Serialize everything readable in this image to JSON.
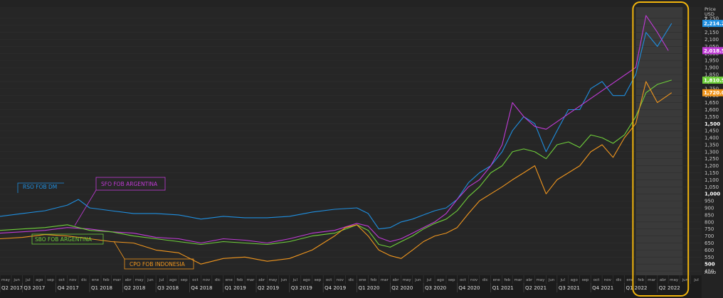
{
  "chart_data": {
    "type": "line",
    "unit_label": [
      "Price",
      "USD",
      "T"
    ],
    "yticks": [
      450,
      500,
      550,
      600,
      650,
      700,
      750,
      800,
      850,
      900,
      950,
      1000,
      1050,
      1100,
      1150,
      1200,
      1250,
      1300,
      1350,
      1400,
      1450,
      1500,
      1550,
      1600,
      1650,
      1700,
      1750,
      1800,
      1850,
      1900,
      1950,
      2000,
      2050,
      2100,
      2150,
      2200,
      2250
    ],
    "ytick_labels": [
      "450",
      "500",
      "550",
      "600",
      "650",
      "700",
      "750",
      "800",
      "850",
      "900",
      "950",
      "1,000",
      "1,050",
      "1,100",
      "1,150",
      "1,200",
      "1,250",
      "1,300",
      "1,350",
      "1,400",
      "1,450",
      "1,500",
      "1,550",
      "1,600",
      "1,650",
      "1,700",
      "1,750",
      "1,800",
      "1,850",
      "1,900",
      "1,950",
      "2,000",
      "2,050",
      "2,100",
      "2,150",
      "2,200",
      "2,250"
    ],
    "ytick_bold": [
      "500",
      "1,000",
      "1,500"
    ],
    "ylim": [
      420,
      2320
    ],
    "ybottom_label": "Auto",
    "xlim": [
      "2017-05-01",
      "2022-07-31"
    ],
    "months": [
      "may",
      "jun",
      "jul",
      "ago",
      "sep",
      "oct",
      "nov",
      "dic",
      "ene",
      "feb",
      "mar",
      "abr",
      "may",
      "jun",
      "jul",
      "ago",
      "sep",
      "oct",
      "nov",
      "dic",
      "ene",
      "feb",
      "mar",
      "abr",
      "may",
      "jun",
      "jul",
      "ago",
      "sep",
      "oct",
      "nov",
      "dic",
      "ene",
      "feb",
      "mar",
      "abr",
      "may",
      "jun",
      "jul",
      "ago",
      "sep",
      "oct",
      "nov",
      "dic",
      "ene",
      "feb",
      "mar",
      "abr",
      "may",
      "jun",
      "jul",
      "ago",
      "sep",
      "oct",
      "nov",
      "dic",
      "ene",
      "feb",
      "mar",
      "abr",
      "may",
      "jun",
      "jul"
    ],
    "quarters": [
      "Q2 2017",
      "Q3 2017",
      "Q4 2017",
      "Q1 2018",
      "Q2 2018",
      "Q3 2018",
      "Q4 2018",
      "Q1 2019",
      "Q2 2019",
      "Q3 2019",
      "Q4 2019",
      "Q1 2020",
      "Q2 2020",
      "Q3 2020",
      "Q4 2020",
      "Q1 2021",
      "Q2 2021",
      "Q3 2021",
      "Q4 2021",
      "Q1 2022",
      "Q2 2022"
    ],
    "highlight_range": [
      "2022-02-01",
      "2022-05-01"
    ],
    "series": [
      {
        "name": "RSO FOB DM",
        "color": "#1f8fe0",
        "last_label": "2,214.2",
        "points": [
          [
            "2017-05-01",
            840
          ],
          [
            "2017-07-01",
            860
          ],
          [
            "2017-09-01",
            880
          ],
          [
            "2017-11-01",
            920
          ],
          [
            "2017-12-01",
            960
          ],
          [
            "2018-01-01",
            900
          ],
          [
            "2018-03-01",
            880
          ],
          [
            "2018-05-01",
            860
          ],
          [
            "2018-07-01",
            860
          ],
          [
            "2018-09-01",
            850
          ],
          [
            "2018-11-01",
            820
          ],
          [
            "2019-01-01",
            840
          ],
          [
            "2019-03-01",
            830
          ],
          [
            "2019-05-01",
            830
          ],
          [
            "2019-07-01",
            840
          ],
          [
            "2019-09-01",
            870
          ],
          [
            "2019-11-01",
            890
          ],
          [
            "2020-01-01",
            900
          ],
          [
            "2020-02-01",
            860
          ],
          [
            "2020-03-01",
            750
          ],
          [
            "2020-04-01",
            760
          ],
          [
            "2020-05-01",
            800
          ],
          [
            "2020-06-01",
            820
          ],
          [
            "2020-07-01",
            850
          ],
          [
            "2020-08-01",
            880
          ],
          [
            "2020-09-01",
            900
          ],
          [
            "2020-10-01",
            960
          ],
          [
            "2020-11-01",
            1080
          ],
          [
            "2020-12-01",
            1150
          ],
          [
            "2021-01-01",
            1200
          ],
          [
            "2021-02-01",
            1300
          ],
          [
            "2021-03-01",
            1450
          ],
          [
            "2021-04-01",
            1550
          ],
          [
            "2021-05-01",
            1500
          ],
          [
            "2021-06-01",
            1300
          ],
          [
            "2021-07-01",
            1450
          ],
          [
            "2021-08-01",
            1600
          ],
          [
            "2021-09-01",
            1600
          ],
          [
            "2021-10-01",
            1750
          ],
          [
            "2021-11-01",
            1800
          ],
          [
            "2021-12-01",
            1700
          ],
          [
            "2022-01-01",
            1700
          ],
          [
            "2022-02-01",
            1850
          ],
          [
            "2022-03-01",
            2150
          ],
          [
            "2022-04-01",
            2050
          ],
          [
            "2022-05-10",
            2214
          ]
        ]
      },
      {
        "name": "SFO FOB ARGENTINA",
        "color": "#c03bd6",
        "last_label": "2,018.5",
        "points": [
          [
            "2017-05-01",
            720
          ],
          [
            "2017-07-01",
            730
          ],
          [
            "2017-09-01",
            740
          ],
          [
            "2017-11-01",
            760
          ],
          [
            "2018-01-01",
            750
          ],
          [
            "2018-03-01",
            730
          ],
          [
            "2018-05-01",
            720
          ],
          [
            "2018-07-01",
            690
          ],
          [
            "2018-09-01",
            680
          ],
          [
            "2018-11-01",
            650
          ],
          [
            "2019-01-01",
            680
          ],
          [
            "2019-03-01",
            670
          ],
          [
            "2019-05-01",
            650
          ],
          [
            "2019-07-01",
            680
          ],
          [
            "2019-09-01",
            720
          ],
          [
            "2019-11-01",
            740
          ],
          [
            "2020-01-01",
            790
          ],
          [
            "2020-02-01",
            770
          ],
          [
            "2020-03-01",
            690
          ],
          [
            "2020-04-01",
            660
          ],
          [
            "2020-05-01",
            680
          ],
          [
            "2020-06-01",
            720
          ],
          [
            "2020-07-01",
            760
          ],
          [
            "2020-08-01",
            800
          ],
          [
            "2020-09-01",
            860
          ],
          [
            "2020-10-01",
            960
          ],
          [
            "2020-11-01",
            1050
          ],
          [
            "2020-12-01",
            1100
          ],
          [
            "2021-01-01",
            1200
          ],
          [
            "2021-02-01",
            1350
          ],
          [
            "2021-03-01",
            1650
          ],
          [
            "2021-04-01",
            1550
          ],
          [
            "2021-05-01",
            1480
          ],
          [
            "2021-06-01",
            1460
          ],
          [
            "2022-02-01",
            1900
          ],
          [
            "2022-03-01",
            2270
          ],
          [
            "2022-04-01",
            2150
          ],
          [
            "2022-05-01",
            2020
          ]
        ]
      },
      {
        "name": "SBO FOB ARGENTINA",
        "color": "#6fcf3a",
        "last_label": "1,810.5",
        "points": [
          [
            "2017-05-01",
            740
          ],
          [
            "2017-07-01",
            750
          ],
          [
            "2017-09-01",
            760
          ],
          [
            "2017-11-01",
            780
          ],
          [
            "2018-01-01",
            740
          ],
          [
            "2018-03-01",
            730
          ],
          [
            "2018-05-01",
            700
          ],
          [
            "2018-07-01",
            680
          ],
          [
            "2018-09-01",
            660
          ],
          [
            "2018-11-01",
            640
          ],
          [
            "2019-01-01",
            660
          ],
          [
            "2019-03-01",
            650
          ],
          [
            "2019-05-01",
            640
          ],
          [
            "2019-07-01",
            660
          ],
          [
            "2019-09-01",
            700
          ],
          [
            "2019-11-01",
            720
          ],
          [
            "2020-01-01",
            780
          ],
          [
            "2020-02-01",
            740
          ],
          [
            "2020-03-01",
            640
          ],
          [
            "2020-04-01",
            620
          ],
          [
            "2020-05-01",
            660
          ],
          [
            "2020-06-01",
            700
          ],
          [
            "2020-07-01",
            750
          ],
          [
            "2020-08-01",
            790
          ],
          [
            "2020-09-01",
            820
          ],
          [
            "2020-10-01",
            880
          ],
          [
            "2020-11-01",
            980
          ],
          [
            "2020-12-01",
            1050
          ],
          [
            "2021-01-01",
            1150
          ],
          [
            "2021-02-01",
            1200
          ],
          [
            "2021-03-01",
            1300
          ],
          [
            "2021-04-01",
            1320
          ],
          [
            "2021-05-01",
            1300
          ],
          [
            "2021-06-01",
            1250
          ],
          [
            "2021-07-01",
            1350
          ],
          [
            "2021-08-01",
            1370
          ],
          [
            "2021-09-01",
            1330
          ],
          [
            "2021-10-01",
            1420
          ],
          [
            "2021-11-01",
            1400
          ],
          [
            "2021-12-01",
            1360
          ],
          [
            "2022-01-01",
            1420
          ],
          [
            "2022-02-01",
            1550
          ],
          [
            "2022-03-01",
            1720
          ],
          [
            "2022-04-01",
            1780
          ],
          [
            "2022-05-10",
            1810
          ]
        ]
      },
      {
        "name": "CPO FOB INDONESIA",
        "color": "#f0961e",
        "last_label": "1,720.0",
        "points": [
          [
            "2017-05-01",
            680
          ],
          [
            "2017-07-01",
            690
          ],
          [
            "2017-09-01",
            710
          ],
          [
            "2017-11-01",
            700
          ],
          [
            "2018-01-01",
            680
          ],
          [
            "2018-03-01",
            660
          ],
          [
            "2018-05-01",
            650
          ],
          [
            "2018-07-01",
            600
          ],
          [
            "2018-09-01",
            580
          ],
          [
            "2018-11-01",
            500
          ],
          [
            "2019-01-01",
            540
          ],
          [
            "2019-03-01",
            550
          ],
          [
            "2019-05-01",
            520
          ],
          [
            "2019-07-01",
            540
          ],
          [
            "2019-09-01",
            600
          ],
          [
            "2019-11-01",
            700
          ],
          [
            "2019-12-01",
            760
          ],
          [
            "2020-01-01",
            780
          ],
          [
            "2020-02-01",
            700
          ],
          [
            "2020-03-01",
            600
          ],
          [
            "2020-04-01",
            560
          ],
          [
            "2020-05-01",
            540
          ],
          [
            "2020-06-01",
            600
          ],
          [
            "2020-07-01",
            660
          ],
          [
            "2020-08-01",
            700
          ],
          [
            "2020-09-01",
            720
          ],
          [
            "2020-10-01",
            760
          ],
          [
            "2020-11-01",
            860
          ],
          [
            "2020-12-01",
            950
          ],
          [
            "2021-01-01",
            1000
          ],
          [
            "2021-02-01",
            1050
          ],
          [
            "2021-03-01",
            1100
          ],
          [
            "2021-04-01",
            1150
          ],
          [
            "2021-05-01",
            1200
          ],
          [
            "2021-06-01",
            1000
          ],
          [
            "2021-07-01",
            1100
          ],
          [
            "2021-08-01",
            1150
          ],
          [
            "2021-09-01",
            1200
          ],
          [
            "2021-10-01",
            1300
          ],
          [
            "2021-11-01",
            1350
          ],
          [
            "2021-12-01",
            1260
          ],
          [
            "2022-01-01",
            1400
          ],
          [
            "2022-02-01",
            1500
          ],
          [
            "2022-03-01",
            1800
          ],
          [
            "2022-04-01",
            1650
          ],
          [
            "2022-05-10",
            1720
          ]
        ]
      }
    ]
  }
}
